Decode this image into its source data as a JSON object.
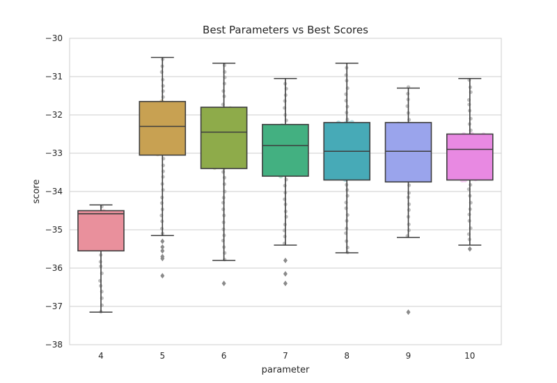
{
  "chart_data": {
    "type": "box",
    "title": "Best Parameters vs Best Scores",
    "xlabel": "parameter",
    "ylabel": "score",
    "ylim": [
      -38,
      -30
    ],
    "yticks": [
      -38,
      -37,
      -36,
      -35,
      -34,
      -33,
      -32,
      -31,
      -30
    ],
    "ytick_labels": [
      "−38",
      "−37",
      "−36",
      "−35",
      "−34",
      "−33",
      "−32",
      "−31",
      "−30"
    ],
    "grid": true,
    "overlay": "swarm",
    "categories": [
      "4",
      "5",
      "6",
      "7",
      "8",
      "9",
      "10"
    ],
    "boxes": [
      {
        "category": "4",
        "color": "#e9909c",
        "whislo": -37.15,
        "q1": -35.55,
        "med": -34.58,
        "q3": -34.5,
        "whishi": -34.35,
        "fliers": []
      },
      {
        "category": "5",
        "color": "#c8a152",
        "whislo": -35.15,
        "q1": -33.05,
        "med": -32.3,
        "q3": -31.65,
        "whishi": -30.5,
        "fliers": [
          -35.3,
          -35.45,
          -35.55,
          -35.7,
          -35.75,
          -36.2
        ]
      },
      {
        "category": "6",
        "color": "#8eab4a",
        "whislo": -35.8,
        "q1": -33.4,
        "med": -32.45,
        "q3": -31.8,
        "whishi": -30.65,
        "fliers": [
          -36.4
        ]
      },
      {
        "category": "7",
        "color": "#43b081",
        "whislo": -35.4,
        "q1": -33.6,
        "med": -32.8,
        "q3": -32.25,
        "whishi": -31.05,
        "fliers": [
          -35.8,
          -36.15,
          -36.4
        ]
      },
      {
        "category": "8",
        "color": "#47aab7",
        "whislo": -35.6,
        "q1": -33.7,
        "med": -32.95,
        "q3": -32.2,
        "whishi": -30.65,
        "fliers": []
      },
      {
        "category": "9",
        "color": "#9aa4ec",
        "whislo": -35.2,
        "q1": -33.75,
        "med": -32.95,
        "q3": -32.2,
        "whishi": -31.3,
        "fliers": [
          -37.15
        ]
      },
      {
        "category": "10",
        "color": "#e889e2",
        "whislo": -35.4,
        "q1": -33.7,
        "med": -32.9,
        "q3": -32.5,
        "whishi": -31.05,
        "fliers": [
          -35.5
        ]
      }
    ]
  }
}
